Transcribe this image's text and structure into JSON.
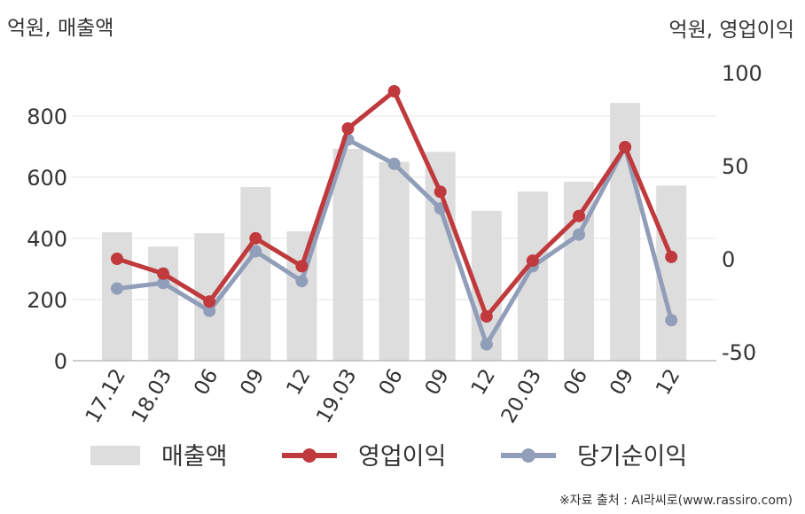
{
  "unit_left": "억원, 매출액",
  "unit_right": "억원, 영업이익",
  "source": "※자료 출처 : AI라씨로(www.rassiro.com)",
  "chart_data": {
    "type": "bar",
    "categories": [
      "17.12",
      "18.03",
      "06",
      "09",
      "12",
      "19.03",
      "06",
      "09",
      "12",
      "20.03",
      "06",
      "09",
      "12"
    ],
    "left_axis": {
      "ylim": [
        0,
        900
      ],
      "ticks": [
        0,
        200,
        400,
        600,
        800
      ]
    },
    "right_axis": {
      "ylim": [
        -50,
        100
      ],
      "ticks": [
        -50,
        0,
        50,
        100
      ]
    },
    "grid": true,
    "legend_position": "bottom",
    "series": [
      {
        "name": "매출액",
        "type": "bar",
        "axis": "left",
        "color": "#dddddd",
        "values": [
          420,
          373,
          417,
          568,
          423,
          693,
          650,
          683,
          490,
          553,
          585,
          843,
          573
        ]
      },
      {
        "name": "영업이익",
        "type": "line",
        "axis": "right",
        "color": "#c0393d",
        "values": [
          0,
          -8,
          -23,
          11,
          -4,
          70,
          90,
          36,
          -31,
          -1,
          23,
          60,
          1
        ]
      },
      {
        "name": "당기순이익",
        "type": "line",
        "axis": "right",
        "color": "#919eb9",
        "values": [
          -16,
          -13,
          -28,
          4,
          -12,
          64,
          51,
          27,
          -46,
          -4,
          13,
          60,
          -33
        ]
      }
    ]
  }
}
